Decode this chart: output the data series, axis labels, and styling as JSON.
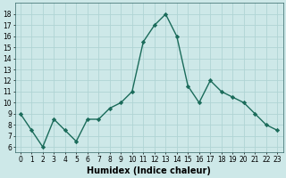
{
  "x": [
    0,
    1,
    2,
    3,
    4,
    5,
    6,
    7,
    8,
    9,
    10,
    11,
    12,
    13,
    14,
    15,
    16,
    17,
    18,
    19,
    20,
    21,
    22,
    23
  ],
  "y": [
    9,
    7.5,
    6,
    8.5,
    7.5,
    6.5,
    8.5,
    8.5,
    9.5,
    10,
    11,
    15.5,
    17,
    18,
    16,
    11.5,
    10,
    12,
    11,
    10.5,
    10,
    9,
    8,
    7.5
  ],
  "line_color": "#1a6b5a",
  "marker": "D",
  "marker_size": 2.2,
  "linewidth": 1.0,
  "xlabel": "Humidex (Indice chaleur)",
  "ylim": [
    5.5,
    19.0
  ],
  "xlim": [
    -0.5,
    23.5
  ],
  "yticks": [
    6,
    7,
    8,
    9,
    10,
    11,
    12,
    13,
    14,
    15,
    16,
    17,
    18
  ],
  "xticks": [
    0,
    1,
    2,
    3,
    4,
    5,
    6,
    7,
    8,
    9,
    10,
    11,
    12,
    13,
    14,
    15,
    16,
    17,
    18,
    19,
    20,
    21,
    22,
    23
  ],
  "background_color": "#cde8e8",
  "grid_color": "#b0d4d4",
  "tick_fontsize": 5.5,
  "xlabel_fontsize": 7,
  "spine_color": "#336666"
}
